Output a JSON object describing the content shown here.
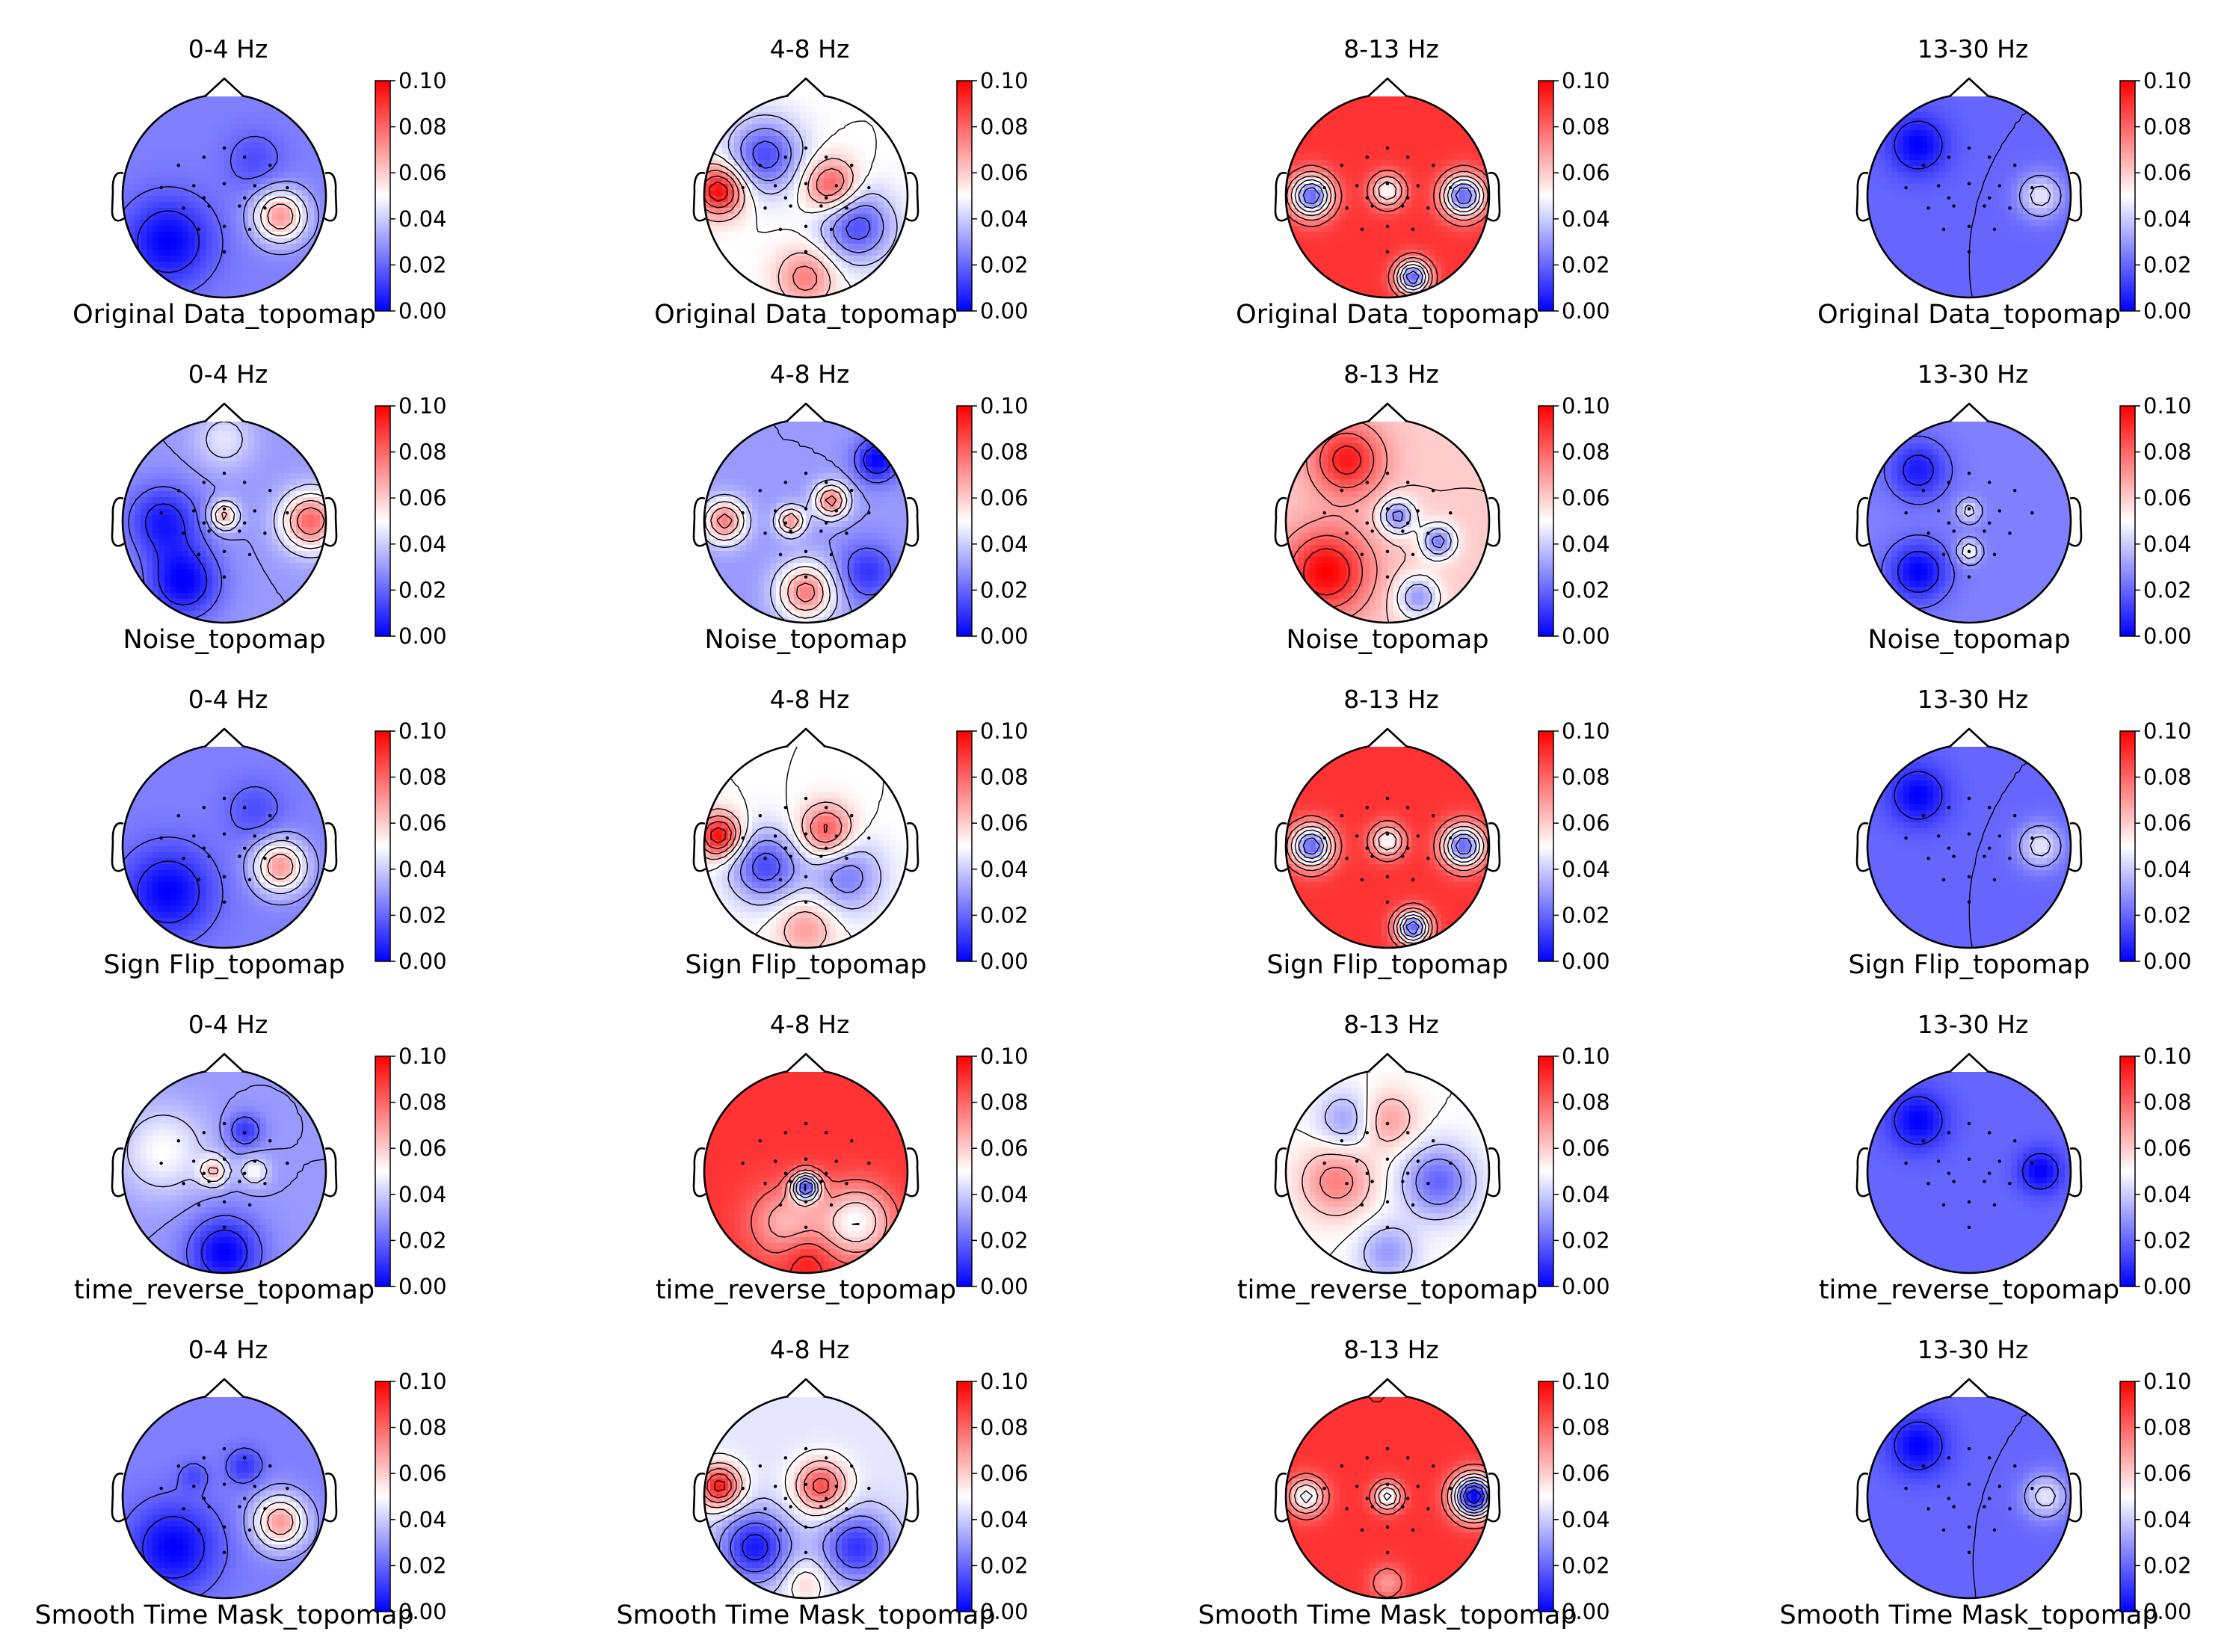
{
  "figure": {
    "layout": {
      "rows": 5,
      "columns": 4
    },
    "colormap": {
      "name": "bwr",
      "low": "#0000ff",
      "mid": "#ffffff",
      "high": "#ff0000"
    },
    "contour_color": "#000000",
    "sensor_marker_color": "#000000"
  },
  "chart_data": {
    "type": "heatmap",
    "subtype": "eeg-topomap-grid",
    "row_labels": [
      "Original Data_topomap",
      "Noise_topomap",
      "Sign Flip_topomap",
      "time_reverse_topomap",
      "Smooth Time Mask_topomap"
    ],
    "column_titles": [
      "0-4 Hz",
      "4-8 Hz",
      "8-13 Hz",
      "13-30 Hz"
    ],
    "colorbar": {
      "vmin": 0.0,
      "vmax": 0.1,
      "ticks": [
        0.0,
        0.02,
        0.04,
        0.06,
        0.08,
        0.1
      ],
      "tick_labels": [
        "0.00",
        "0.02",
        "0.04",
        "0.06",
        "0.08",
        "0.10"
      ]
    },
    "panels": [
      {
        "row": "Original Data_topomap",
        "band": "0-4 Hz",
        "base_value": 0.025,
        "sources": [
          {
            "u": 0.55,
            "v": 0.2,
            "s": 0.18,
            "val": 0.07
          },
          {
            "u": -0.55,
            "v": 0.45,
            "s": 0.3,
            "val": 0.0
          },
          {
            "u": 0.3,
            "v": -0.35,
            "s": 0.2,
            "val": 0.015
          }
        ]
      },
      {
        "row": "Original Data_topomap",
        "band": "4-8 Hz",
        "base_value": 0.05,
        "sources": [
          {
            "u": -0.85,
            "v": -0.05,
            "s": 0.17,
            "val": 0.1
          },
          {
            "u": 0.25,
            "v": -0.1,
            "s": 0.18,
            "val": 0.085
          },
          {
            "u": -0.4,
            "v": -0.4,
            "s": 0.25,
            "val": 0.015
          },
          {
            "u": 0.5,
            "v": 0.3,
            "s": 0.25,
            "val": 0.015
          },
          {
            "u": 0.0,
            "v": 0.8,
            "s": 0.2,
            "val": 0.075
          }
        ]
      },
      {
        "row": "Original Data_topomap",
        "band": "8-13 Hz",
        "base_value": 0.09,
        "sources": [
          {
            "u": -0.75,
            "v": 0.0,
            "s": 0.15,
            "val": 0.02
          },
          {
            "u": 0.75,
            "v": 0.0,
            "s": 0.15,
            "val": 0.02
          },
          {
            "u": 0.0,
            "v": -0.05,
            "s": 0.12,
            "val": 0.05
          },
          {
            "u": 0.25,
            "v": 0.8,
            "s": 0.12,
            "val": 0.02
          }
        ]
      },
      {
        "row": "Original Data_topomap",
        "band": "13-30 Hz",
        "base_value": 0.02,
        "sources": [
          {
            "u": -0.5,
            "v": -0.5,
            "s": 0.2,
            "val": 0.0
          },
          {
            "u": 0.7,
            "v": 0.0,
            "s": 0.15,
            "val": 0.045
          }
        ]
      },
      {
        "row": "Noise_topomap",
        "band": "0-4 Hz",
        "base_value": 0.03,
        "sources": [
          {
            "u": 0.85,
            "v": 0.0,
            "s": 0.2,
            "val": 0.08
          },
          {
            "u": -0.6,
            "v": 0.0,
            "s": 0.25,
            "val": 0.005
          },
          {
            "u": -0.4,
            "v": 0.6,
            "s": 0.25,
            "val": 0.0
          },
          {
            "u": 0.0,
            "v": -0.05,
            "s": 0.1,
            "val": 0.065
          },
          {
            "u": 0.0,
            "v": -0.8,
            "s": 0.2,
            "val": 0.045
          }
        ]
      },
      {
        "row": "Noise_topomap",
        "band": "4-8 Hz",
        "base_value": 0.03,
        "sources": [
          {
            "u": -0.8,
            "v": 0.0,
            "s": 0.15,
            "val": 0.075
          },
          {
            "u": 0.25,
            "v": -0.2,
            "s": 0.12,
            "val": 0.075
          },
          {
            "u": -0.15,
            "v": 0.0,
            "s": 0.1,
            "val": 0.07
          },
          {
            "u": 0.7,
            "v": -0.6,
            "s": 0.15,
            "val": 0.0
          },
          {
            "u": 0.0,
            "v": 0.7,
            "s": 0.2,
            "val": 0.075
          },
          {
            "u": 0.6,
            "v": 0.5,
            "s": 0.2,
            "val": 0.01
          }
        ]
      },
      {
        "row": "Noise_topomap",
        "band": "8-13 Hz",
        "base_value": 0.06,
        "sources": [
          {
            "u": -0.6,
            "v": 0.5,
            "s": 0.3,
            "val": 0.1
          },
          {
            "u": -0.4,
            "v": -0.6,
            "s": 0.25,
            "val": 0.095
          },
          {
            "u": 0.1,
            "v": -0.05,
            "s": 0.12,
            "val": 0.025
          },
          {
            "u": 0.5,
            "v": 0.2,
            "s": 0.12,
            "val": 0.025
          },
          {
            "u": 0.3,
            "v": 0.75,
            "s": 0.15,
            "val": 0.03
          }
        ]
      },
      {
        "row": "Noise_topomap",
        "band": "13-30 Hz",
        "base_value": 0.025,
        "sources": [
          {
            "u": -0.5,
            "v": 0.5,
            "s": 0.2,
            "val": 0.0
          },
          {
            "u": -0.5,
            "v": -0.5,
            "s": 0.2,
            "val": 0.005
          },
          {
            "u": 0.0,
            "v": 0.3,
            "s": 0.08,
            "val": 0.05
          },
          {
            "u": 0.0,
            "v": -0.1,
            "s": 0.08,
            "val": 0.045
          }
        ]
      },
      {
        "row": "Sign Flip_topomap",
        "band": "0-4 Hz",
        "base_value": 0.025,
        "sources": [
          {
            "u": 0.55,
            "v": 0.2,
            "s": 0.18,
            "val": 0.07
          },
          {
            "u": -0.55,
            "v": 0.45,
            "s": 0.3,
            "val": 0.0
          },
          {
            "u": 0.3,
            "v": -0.35,
            "s": 0.2,
            "val": 0.015
          }
        ]
      },
      {
        "row": "Sign Flip_topomap",
        "band": "4-8 Hz",
        "base_value": 0.05,
        "sources": [
          {
            "u": -0.85,
            "v": -0.1,
            "s": 0.15,
            "val": 0.1
          },
          {
            "u": 0.2,
            "v": -0.15,
            "s": 0.18,
            "val": 0.085
          },
          {
            "u": -0.4,
            "v": 0.2,
            "s": 0.25,
            "val": 0.015
          },
          {
            "u": 0.4,
            "v": 0.3,
            "s": 0.25,
            "val": 0.025
          },
          {
            "u": 0.0,
            "v": 0.8,
            "s": 0.2,
            "val": 0.07
          }
        ]
      },
      {
        "row": "Sign Flip_topomap",
        "band": "8-13 Hz",
        "base_value": 0.09,
        "sources": [
          {
            "u": -0.75,
            "v": 0.0,
            "s": 0.15,
            "val": 0.02
          },
          {
            "u": 0.75,
            "v": 0.0,
            "s": 0.15,
            "val": 0.02
          },
          {
            "u": 0.0,
            "v": -0.05,
            "s": 0.12,
            "val": 0.05
          },
          {
            "u": 0.25,
            "v": 0.8,
            "s": 0.12,
            "val": 0.02
          }
        ]
      },
      {
        "row": "Sign Flip_topomap",
        "band": "13-30 Hz",
        "base_value": 0.02,
        "sources": [
          {
            "u": -0.5,
            "v": -0.5,
            "s": 0.2,
            "val": 0.0
          },
          {
            "u": 0.7,
            "v": 0.0,
            "s": 0.15,
            "val": 0.045
          }
        ]
      },
      {
        "row": "time_reverse_topomap",
        "band": "0-4 Hz",
        "base_value": 0.03,
        "sources": [
          {
            "u": -0.6,
            "v": -0.2,
            "s": 0.3,
            "val": 0.05
          },
          {
            "u": 0.2,
            "v": -0.4,
            "s": 0.12,
            "val": 0.01
          },
          {
            "u": -0.1,
            "v": 0.0,
            "s": 0.1,
            "val": 0.06
          },
          {
            "u": 0.3,
            "v": 0.0,
            "s": 0.1,
            "val": 0.05
          },
          {
            "u": 0.0,
            "v": 0.8,
            "s": 0.25,
            "val": 0.0
          }
        ]
      },
      {
        "row": "time_reverse_topomap",
        "band": "4-8 Hz",
        "base_value": 0.09,
        "sources": [
          {
            "u": 0.0,
            "v": 0.15,
            "s": 0.1,
            "val": 0.025
          },
          {
            "u": -0.2,
            "v": 0.5,
            "s": 0.25,
            "val": 0.065
          },
          {
            "u": 0.5,
            "v": 0.5,
            "s": 0.25,
            "val": 0.05
          },
          {
            "u": 0.0,
            "v": 0.85,
            "s": 0.15,
            "val": 0.1
          }
        ]
      },
      {
        "row": "time_reverse_topomap",
        "band": "8-13 Hz",
        "base_value": 0.05,
        "sources": [
          {
            "u": -0.5,
            "v": 0.1,
            "s": 0.25,
            "val": 0.075
          },
          {
            "u": 0.5,
            "v": 0.1,
            "s": 0.25,
            "val": 0.02
          },
          {
            "u": 0.0,
            "v": -0.5,
            "s": 0.2,
            "val": 0.07
          },
          {
            "u": -0.4,
            "v": -0.5,
            "s": 0.2,
            "val": 0.03
          },
          {
            "u": 0.0,
            "v": 0.8,
            "s": 0.2,
            "val": 0.03
          }
        ]
      },
      {
        "row": "time_reverse_topomap",
        "band": "13-30 Hz",
        "base_value": 0.02,
        "sources": [
          {
            "u": -0.5,
            "v": -0.5,
            "s": 0.2,
            "val": 0.0
          },
          {
            "u": 0.7,
            "v": 0.0,
            "s": 0.15,
            "val": 0.0
          }
        ]
      },
      {
        "row": "Smooth Time Mask_topomap",
        "band": "0-4 Hz",
        "base_value": 0.025,
        "sources": [
          {
            "u": 0.55,
            "v": 0.25,
            "s": 0.18,
            "val": 0.07
          },
          {
            "u": -0.5,
            "v": 0.5,
            "s": 0.3,
            "val": 0.0
          },
          {
            "u": 0.2,
            "v": -0.3,
            "s": 0.12,
            "val": 0.01
          },
          {
            "u": -0.3,
            "v": -0.2,
            "s": 0.1,
            "val": 0.015
          }
        ]
      },
      {
        "row": "Smooth Time Mask_topomap",
        "band": "4-8 Hz",
        "base_value": 0.045,
        "sources": [
          {
            "u": -0.85,
            "v": -0.1,
            "s": 0.15,
            "val": 0.095
          },
          {
            "u": 0.15,
            "v": -0.1,
            "s": 0.18,
            "val": 0.085
          },
          {
            "u": -0.5,
            "v": 0.5,
            "s": 0.25,
            "val": 0.005
          },
          {
            "u": 0.5,
            "v": 0.5,
            "s": 0.25,
            "val": 0.01
          },
          {
            "u": 0.0,
            "v": 0.85,
            "s": 0.15,
            "val": 0.06
          }
        ]
      },
      {
        "row": "Smooth Time Mask_topomap",
        "band": "8-13 Hz",
        "base_value": 0.09,
        "sources": [
          {
            "u": 0.85,
            "v": 0.0,
            "s": 0.15,
            "val": 0.0
          },
          {
            "u": -0.8,
            "v": 0.0,
            "s": 0.13,
            "val": 0.045
          },
          {
            "u": 0.0,
            "v": 0.0,
            "s": 0.1,
            "val": 0.045
          },
          {
            "u": 0.0,
            "v": 0.85,
            "s": 0.12,
            "val": 0.07
          }
        ]
      },
      {
        "row": "Smooth Time Mask_topomap",
        "band": "13-30 Hz",
        "base_value": 0.02,
        "sources": [
          {
            "u": -0.5,
            "v": -0.5,
            "s": 0.2,
            "val": 0.0
          },
          {
            "u": 0.75,
            "v": 0.0,
            "s": 0.15,
            "val": 0.045
          }
        ]
      }
    ]
  }
}
